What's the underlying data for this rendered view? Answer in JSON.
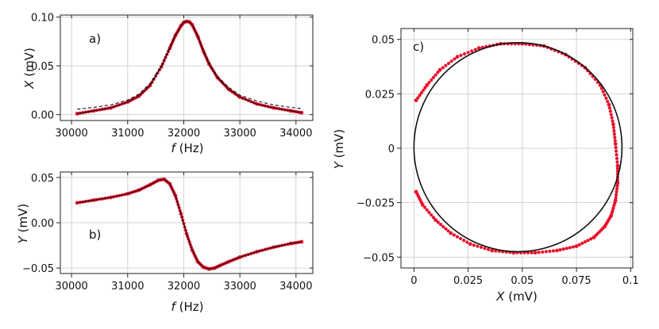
{
  "chart_data": [
    {
      "id": "a",
      "type": "line",
      "panel_label": "a)",
      "xlabel": {
        "italic": "f",
        "rest": " (Hz)"
      },
      "ylabel": {
        "italic": "X",
        "rest": " (mV)"
      },
      "xlim": [
        29800,
        34300
      ],
      "ylim": [
        -0.006,
        0.102
      ],
      "xticks": [
        30000,
        31000,
        32000,
        33000,
        34000
      ],
      "xtick_labels": [
        "30000",
        "31000",
        "32000",
        "33000",
        "34000"
      ],
      "yticks": [
        0.0,
        0.05,
        0.1
      ],
      "ytick_labels": [
        "0.00",
        "0.05",
        "0.10"
      ],
      "grid": true,
      "series": [
        {
          "style": "red-dots",
          "x": [
            30100,
            30400,
            30700,
            31000,
            31200,
            31400,
            31600,
            31750,
            31850,
            31950,
            32000,
            32050,
            32100,
            32150,
            32250,
            32350,
            32450,
            32600,
            32800,
            33000,
            33300,
            33600,
            33900,
            34100
          ],
          "y": [
            0.001,
            0.004,
            0.007,
            0.013,
            0.019,
            0.03,
            0.049,
            0.068,
            0.081,
            0.091,
            0.0945,
            0.0955,
            0.095,
            0.092,
            0.08,
            0.065,
            0.052,
            0.038,
            0.026,
            0.018,
            0.011,
            0.007,
            0.004,
            0.002
          ]
        },
        {
          "style": "black-dashed",
          "x": [
            30100,
            30400,
            30700,
            31000,
            31200,
            31400,
            31600,
            31750,
            31850,
            31950,
            32000,
            32050,
            32100,
            32150,
            32250,
            32350,
            32450,
            32600,
            32800,
            33000,
            33300,
            33600,
            33900,
            34100
          ],
          "y": [
            0.0055,
            0.0075,
            0.01,
            0.015,
            0.021,
            0.032,
            0.05,
            0.069,
            0.082,
            0.091,
            0.094,
            0.0955,
            0.095,
            0.092,
            0.081,
            0.066,
            0.053,
            0.039,
            0.028,
            0.02,
            0.014,
            0.01,
            0.0075,
            0.0062
          ]
        },
        {
          "style": "black-solid",
          "x": [
            30100,
            30400,
            30700,
            31000,
            31200,
            31400,
            31600,
            31750,
            31850,
            31950,
            32000,
            32050,
            32100,
            32150,
            32250,
            32350,
            32450,
            32600,
            32800,
            33000,
            33300,
            33600,
            33900,
            34100
          ],
          "y": [
            0.001,
            0.004,
            0.007,
            0.013,
            0.019,
            0.03,
            0.049,
            0.068,
            0.081,
            0.091,
            0.0945,
            0.0955,
            0.095,
            0.092,
            0.08,
            0.065,
            0.052,
            0.038,
            0.026,
            0.018,
            0.011,
            0.007,
            0.004,
            0.002
          ]
        }
      ]
    },
    {
      "id": "b",
      "type": "line",
      "panel_label": "b)",
      "xlabel": {
        "italic": "f",
        "rest": " (Hz)"
      },
      "ylabel": {
        "italic": "Y",
        "rest": " (mV)"
      },
      "xlim": [
        29800,
        34300
      ],
      "ylim": [
        -0.056,
        0.056
      ],
      "xticks": [
        30000,
        31000,
        32000,
        33000,
        34000
      ],
      "xtick_labels": [
        "30000",
        "31000",
        "32000",
        "33000",
        "34000"
      ],
      "yticks": [
        -0.05,
        0.0,
        0.05
      ],
      "ytick_labels": [
        "−0.05",
        "0.00",
        "0.05"
      ],
      "grid": true,
      "series": [
        {
          "style": "red-dots",
          "x": [
            30100,
            30400,
            30700,
            31000,
            31200,
            31400,
            31550,
            31650,
            31750,
            31850,
            31950,
            32050,
            32150,
            32250,
            32350,
            32450,
            32550,
            32650,
            32800,
            33000,
            33300,
            33600,
            33900,
            34100
          ],
          "y": [
            0.022,
            0.025,
            0.028,
            0.032,
            0.036,
            0.042,
            0.047,
            0.048,
            0.043,
            0.03,
            0.01,
            -0.012,
            -0.03,
            -0.043,
            -0.049,
            -0.051,
            -0.05,
            -0.047,
            -0.043,
            -0.038,
            -0.032,
            -0.027,
            -0.023,
            -0.021
          ]
        },
        {
          "style": "black-solid",
          "x": [
            30100,
            30400,
            30700,
            31000,
            31200,
            31400,
            31550,
            31650,
            31750,
            31850,
            31950,
            32050,
            32150,
            32250,
            32350,
            32450,
            32550,
            32650,
            32800,
            33000,
            33300,
            33600,
            33900,
            34100
          ],
          "y": [
            0.022,
            0.025,
            0.028,
            0.032,
            0.036,
            0.042,
            0.047,
            0.048,
            0.043,
            0.03,
            0.01,
            -0.012,
            -0.03,
            -0.043,
            -0.049,
            -0.051,
            -0.05,
            -0.047,
            -0.043,
            -0.038,
            -0.032,
            -0.027,
            -0.023,
            -0.021
          ]
        }
      ]
    },
    {
      "id": "c",
      "type": "scatter",
      "panel_label": "c)",
      "xlabel": {
        "italic": "X",
        "rest": " (mV)"
      },
      "ylabel": {
        "italic": "Y",
        "rest": " (mV)"
      },
      "xlim": [
        -0.006,
        0.101
      ],
      "ylim": [
        -0.055,
        0.055
      ],
      "xticks": [
        0.0,
        0.025,
        0.05,
        0.075,
        0.1
      ],
      "xtick_labels": [
        "0",
        "0.025",
        "0.05",
        "0.075",
        "0.1"
      ],
      "yticks": [
        -0.05,
        -0.025,
        0.0,
        0.025,
        0.05
      ],
      "ytick_labels": [
        "−0.05",
        "−0.025",
        "0",
        "0.025",
        "0.05"
      ],
      "grid": true,
      "fit_circle": {
        "cx": 0.048,
        "cy": 0.0005,
        "r": 0.048
      },
      "series": [
        {
          "style": "red-dots",
          "x": [
            0.001,
            0.006,
            0.012,
            0.02,
            0.03,
            0.04,
            0.05,
            0.06,
            0.07,
            0.079,
            0.086,
            0.09,
            0.092,
            0.093,
            0.094,
            0.094,
            0.093,
            0.091,
            0.088,
            0.083,
            0.075,
            0.066,
            0.056,
            0.046,
            0.036,
            0.026,
            0.017,
            0.01,
            0.004,
            0.001
          ],
          "y": [
            0.022,
            0.029,
            0.036,
            0.042,
            0.046,
            0.048,
            0.048,
            0.047,
            0.043,
            0.037,
            0.029,
            0.02,
            0.011,
            0.002,
            -0.008,
            -0.016,
            -0.024,
            -0.031,
            -0.036,
            -0.041,
            -0.045,
            -0.047,
            -0.048,
            -0.048,
            -0.047,
            -0.044,
            -0.039,
            -0.033,
            -0.026,
            -0.02
          ]
        }
      ]
    }
  ]
}
